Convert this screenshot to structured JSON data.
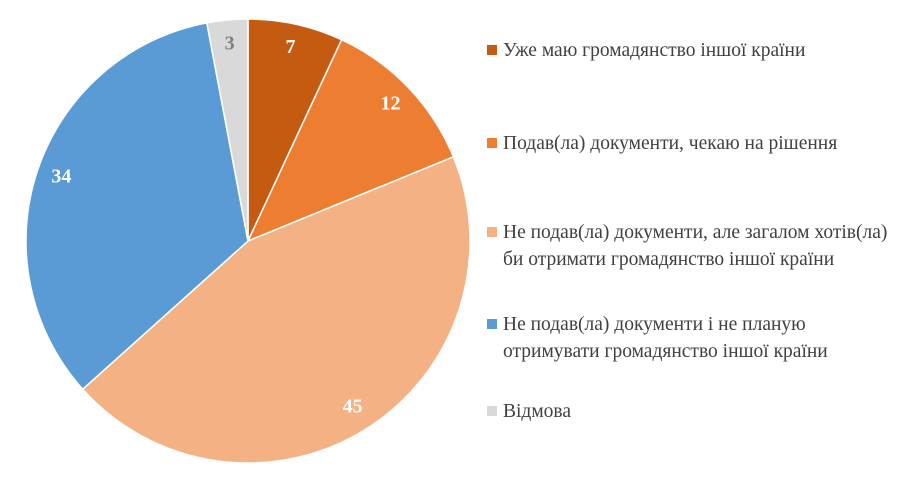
{
  "chart_data": {
    "type": "pie",
    "categories": [
      "Уже маю громадянство іншої країни",
      "Подав(ла) документи, чекаю на рішення",
      "Не подав(ла) документи, але загалом хотів(ла) би отримати громадянство іншої країни",
      "Не подав(ла) документи і не планую отримувати громадянство іншої країни",
      "Відмова"
    ],
    "values": [
      7,
      12,
      45,
      34,
      3
    ],
    "colors": [
      "#c55a11",
      "#ed7d31",
      "#f4b183",
      "#5b9bd5",
      "#d9d9d9"
    ],
    "legend": "right"
  }
}
